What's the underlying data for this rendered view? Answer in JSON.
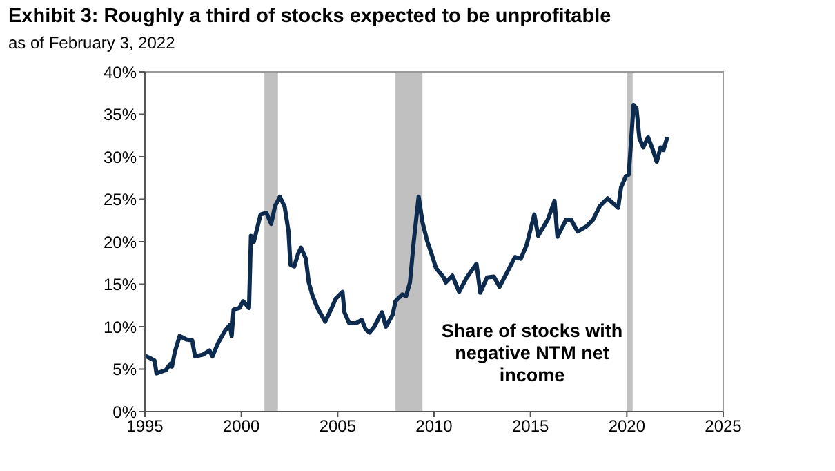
{
  "chart_data": {
    "type": "line",
    "title": "Exhibit 3: Roughly a third of stocks expected to be unprofitable",
    "subtitle": "as of February 3, 2022",
    "annotations": [
      "Share of stocks with negative NTM net income"
    ],
    "x": [
      1995,
      1995.35,
      1995.5,
      1995.6,
      1996.1,
      1996.3,
      1996.4,
      1996.55,
      1996.8,
      1997.15,
      1997.45,
      1997.6,
      1998,
      1998.35,
      1998.5,
      1998.8,
      1999.15,
      1999.4,
      1999.5,
      1999.6,
      1999.9,
      2000.1,
      2000.4,
      2000.5,
      2000.65,
      2001,
      2001.3,
      2001.55,
      2001.75,
      2002,
      2002.25,
      2002.45,
      2002.55,
      2002.75,
      2002.95,
      2003.1,
      2003.35,
      2003.5,
      2003.7,
      2003.95,
      2004.15,
      2004.35,
      2004.65,
      2004.9,
      2005.25,
      2005.35,
      2005.6,
      2005.95,
      2006.25,
      2006.45,
      2006.65,
      2006.9,
      2007.15,
      2007.3,
      2007.5,
      2007.85,
      2008,
      2008.35,
      2008.55,
      2008.75,
      2008.95,
      2009.2,
      2009.4,
      2009.64,
      2009.88,
      2010.1,
      2010.5,
      2010.6,
      2010.95,
      2011.3,
      2011.7,
      2012.2,
      2012.4,
      2012.75,
      2013.1,
      2013.4,
      2013.95,
      2014.2,
      2014.5,
      2014.8,
      2015.2,
      2015.4,
      2015.9,
      2016.25,
      2016.4,
      2016.85,
      2017.1,
      2017.45,
      2017.9,
      2018.25,
      2018.6,
      2019,
      2019.3,
      2019.55,
      2019.7,
      2019.95,
      2020.1,
      2020.35,
      2020.5,
      2020.65,
      2020.85,
      2021.1,
      2021.35,
      2021.55,
      2021.75,
      2021.9,
      2022.1
    ],
    "series": [
      {
        "color": "#0d2b4e",
        "values": [
          6.6,
          6.2,
          6.0,
          4.5,
          4.9,
          5.6,
          5.3,
          7.0,
          8.9,
          8.5,
          8.4,
          6.5,
          6.7,
          7.2,
          6.5,
          8.1,
          9.5,
          10.2,
          8.9,
          12.0,
          12.2,
          13.0,
          12.2,
          20.7,
          20.0,
          23.2,
          23.4,
          22.1,
          24.2,
          25.3,
          24.1,
          21.2,
          17.3,
          17.1,
          18.6,
          19.3,
          18.0,
          15.2,
          13.6,
          12.2,
          11.4,
          10.6,
          12.0,
          13.3,
          14.1,
          11.7,
          10.4,
          10.4,
          10.8,
          9.7,
          9.3,
          10.0,
          11.1,
          11.7,
          10.0,
          11.4,
          13.0,
          13.8,
          13.6,
          15.2,
          20.1,
          25.3,
          22.3,
          20.1,
          18.5,
          16.9,
          15.8,
          15.2,
          16.0,
          14.1,
          15.8,
          17.4,
          14.0,
          15.8,
          15.9,
          14.7,
          17.1,
          18.2,
          18.0,
          19.6,
          23.2,
          20.7,
          22.6,
          24.8,
          20.6,
          22.6,
          22.6,
          21.2,
          21.8,
          22.6,
          24.2,
          25.1,
          24.5,
          24.0,
          26.4,
          27.7,
          27.9,
          36.1,
          35.7,
          32.2,
          31.1,
          32.3,
          30.8,
          29.4,
          31.1,
          30.8,
          32.3
        ]
      }
    ],
    "xlim": [
      1995,
      2025
    ],
    "xticks": [
      1995,
      2000,
      2005,
      2010,
      2015,
      2020,
      2025
    ],
    "ylim": [
      0,
      40
    ],
    "yticks": [
      {
        "value": 0,
        "label": "0%"
      },
      {
        "value": 5,
        "label": "5%"
      },
      {
        "value": 10,
        "label": "10%"
      },
      {
        "value": 15,
        "label": "15%"
      },
      {
        "value": 20,
        "label": "20%"
      },
      {
        "value": 25,
        "label": "25%"
      },
      {
        "value": 30,
        "label": "30%"
      },
      {
        "value": 35,
        "label": "35%"
      },
      {
        "value": 40,
        "label": "40%"
      }
    ],
    "bands": [
      {
        "axis": "x",
        "from": 2001.2,
        "to": 2001.9,
        "color": "#c0c0c0"
      },
      {
        "axis": "x",
        "from": 2008.0,
        "to": 2009.4,
        "color": "#c0c0c0"
      },
      {
        "axis": "x",
        "from": 2020.0,
        "to": 2020.3,
        "color": "#c0c0c0"
      }
    ],
    "grid": false,
    "marker": "none",
    "line_style": "solid"
  }
}
